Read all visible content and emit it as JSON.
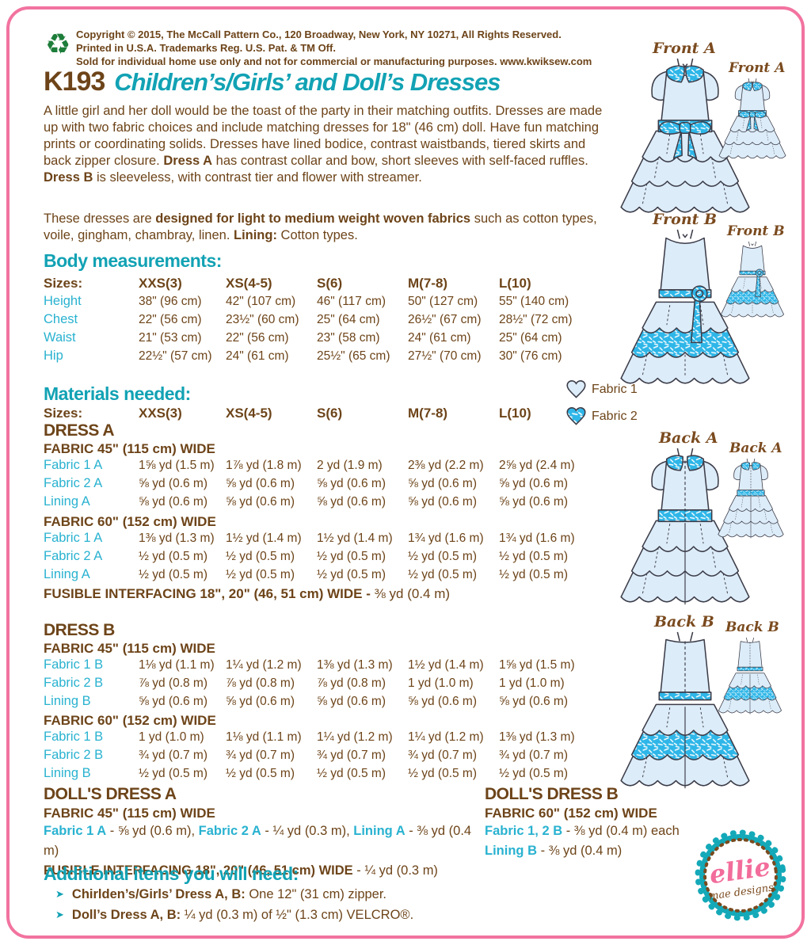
{
  "colors": {
    "brown": "#6d4419",
    "teal": "#12a2b4",
    "cyan": "#29b2d0",
    "pink": "#f2739f",
    "dress_light": "#dcecf8",
    "dress_bright": "#2eb6e8",
    "recycle_green": "#1d7d3a"
  },
  "icons": {
    "recycle": "♻",
    "bullet": "➤"
  },
  "header": {
    "copyright_lines": [
      "Copyright © 2015, The McCall Pattern Co., 120 Broadway, New York, NY 10271, All Rights Reserved.",
      "Printed in U.S.A. Trademarks Reg. U.S. Pat. & TM Off.",
      "Sold for individual home use only and not for commercial or manufacturing purposes. www.kwiksew.com"
    ],
    "code": "K193",
    "title": "Children’s/Girls’ and Doll’s Dresses"
  },
  "intro_segments": [
    {
      "t": "A little girl and her doll would be the toast of the party in their matching outfits. Dresses are made up with two fabric choices and include matching dresses for 18\" (46 cm) doll. Have fun matching prints or coordinating solids. Dresses have lined bodice, contrast waistbands, tiered skirts and back zipper closure. "
    },
    {
      "t": "Dress A",
      "b": true
    },
    {
      "t": " has contrast collar and bow, short sleeves with self-faced ruffles. "
    },
    {
      "t": "Dress B",
      "b": true
    },
    {
      "t": " is sleeveless, with contrast tier and flower with streamer."
    }
  ],
  "fabric_note_segments": [
    {
      "t": "These dresses are "
    },
    {
      "t": "designed for light to medium weight woven fabrics",
      "b": true
    },
    {
      "t": " such as cotton types, voile, gingham, chambray, linen. "
    },
    {
      "t": "Lining:",
      "b": true
    },
    {
      "t": " Cotton types."
    }
  ],
  "body_measurements": {
    "heading": "Body measurements:",
    "table": [
      {
        "label": "Sizes:",
        "header": true,
        "values": [
          "XXS(3)",
          "XS(4-5)",
          "S(6)",
          "M(7-8)",
          "L(10)"
        ]
      },
      {
        "label": "Height",
        "values": [
          "38\" (96 cm)",
          "42\" (107 cm)",
          "46\" (117 cm)",
          "50\" (127 cm)",
          "55\" (140 cm)"
        ]
      },
      {
        "label": "Chest",
        "values": [
          "22\" (56 cm)",
          "23½\" (60 cm)",
          "25\" (64 cm)",
          "26½\" (67 cm)",
          "28½\" (72 cm)"
        ]
      },
      {
        "label": "Waist",
        "values": [
          "21\" (53 cm)",
          "22\" (56 cm)",
          "23\" (58 cm)",
          "24\" (61 cm)",
          "25\" (64 cm)"
        ]
      },
      {
        "label": "Hip",
        "values": [
          "22½\" (57 cm)",
          "24\" (61 cm)",
          "25½\" (65 cm)",
          "27½\" (70 cm)",
          "30\" (76 cm)"
        ]
      }
    ]
  },
  "materials": {
    "heading": "Materials needed:",
    "sizes_table": [
      {
        "label": "Sizes:",
        "header": true,
        "values": [
          "XXS(3)",
          "XS(4-5)",
          "S(6)",
          "M(7-8)",
          "L(10)"
        ]
      }
    ],
    "dress_a": {
      "heading": "DRESS A",
      "fabric45_heading": "FABRIC 45\" (115 cm) WIDE",
      "fabric45_rows": [
        {
          "label": "Fabric 1 A",
          "values": [
            "1⅝ yd (1.5 m)",
            "1⅞ yd (1.8 m)",
            "2 yd (1.9 m)",
            "2⅜ yd (2.2 m)",
            "2⅝ yd (2.4 m)"
          ]
        },
        {
          "label": "Fabric 2 A",
          "values": [
            "⅝ yd (0.6 m)",
            "⅝ yd (0.6 m)",
            "⅝ yd (0.6 m)",
            "⅝ yd (0.6 m)",
            "⅝ yd (0.6 m)"
          ]
        },
        {
          "label": "Lining A",
          "values": [
            "⅝ yd (0.6 m)",
            "⅝ yd (0.6 m)",
            "⅝ yd (0.6 m)",
            "⅝ yd (0.6 m)",
            "⅝ yd (0.6 m)"
          ]
        }
      ],
      "fabric60_heading": "FABRIC 60\" (152 cm) WIDE",
      "fabric60_rows": [
        {
          "label": "Fabric 1 A",
          "values": [
            "1⅜ yd (1.3 m)",
            "1½ yd (1.4 m)",
            "1½ yd (1.4 m)",
            "1¾ yd (1.6 m)",
            "1¾ yd (1.6 m)"
          ]
        },
        {
          "label": "Fabric 2 A",
          "values": [
            "½ yd (0.5 m)",
            "½ yd (0.5 m)",
            "½ yd (0.5 m)",
            "½ yd (0.5 m)",
            "½ yd (0.5 m)"
          ]
        },
        {
          "label": "Lining A",
          "values": [
            "½ yd (0.5 m)",
            "½ yd (0.5 m)",
            "½ yd (0.5 m)",
            "½ yd (0.5 m)",
            "½ yd (0.5 m)"
          ]
        }
      ],
      "fusible_segments": [
        {
          "t": "FUSIBLE INTERFACING 18\", 20\" (46, 51 cm) WIDE - ",
          "b": true
        },
        {
          "t": "⅜ yd (0.4 m)"
        }
      ]
    },
    "dress_b": {
      "heading": "DRESS B",
      "fabric45_heading": "FABRIC 45\" (115 cm) WIDE",
      "fabric45_rows": [
        {
          "label": "Fabric 1 B",
          "values": [
            "1⅛ yd (1.1 m)",
            "1¼ yd (1.2 m)",
            "1⅜ yd (1.3 m)",
            "1½ yd (1.4 m)",
            "1⅝ yd (1.5 m)"
          ]
        },
        {
          "label": "Fabric 2 B",
          "values": [
            "⅞ yd (0.8 m)",
            "⅞ yd (0.8 m)",
            "⅞ yd (0.8 m)",
            "1 yd (1.0 m)",
            "1 yd (1.0 m)"
          ]
        },
        {
          "label": "Lining B",
          "values": [
            "⅝ yd (0.6 m)",
            "⅝ yd (0.6 m)",
            "⅝ yd (0.6 m)",
            "⅝ yd (0.6 m)",
            "⅝ yd (0.6 m)"
          ]
        }
      ],
      "fabric60_heading": "FABRIC 60\" (152 cm) WIDE",
      "fabric60_rows": [
        {
          "label": "Fabric 1 B",
          "values": [
            "1 yd (1.0 m)",
            "1⅛ yd (1.1 m)",
            "1¼ yd (1.2 m)",
            "1¼ yd (1.2 m)",
            "1⅜ yd (1.3 m)"
          ]
        },
        {
          "label": "Fabric 2 B",
          "values": [
            "¾ yd (0.7 m)",
            "¾ yd (0.7 m)",
            "¾ yd (0.7 m)",
            "¾ yd (0.7 m)",
            "¾ yd (0.7 m)"
          ]
        },
        {
          "label": "Lining B",
          "values": [
            "½ yd (0.5 m)",
            "½ yd (0.5 m)",
            "½ yd (0.5 m)",
            "½ yd (0.5 m)",
            "½ yd (0.5 m)"
          ]
        }
      ]
    }
  },
  "dolls": {
    "a": {
      "heading": "DOLL'S DRESS A",
      "fabric_heading": "FABRIC 45\" (115 cm) WIDE",
      "line_segments": [
        {
          "t": "Fabric 1 A",
          "c": true
        },
        {
          "t": " - ⅝ yd (0.6 m), "
        },
        {
          "t": "Fabric 2 A",
          "c": true
        },
        {
          "t": " - ¼ yd (0.3 m), "
        },
        {
          "t": "Lining A",
          "c": true
        },
        {
          "t": " - ⅜ yd (0.4 m)"
        }
      ],
      "fusible_segments": [
        {
          "t": "FUSIBLE INTERFACING 18\", 20\" (46, 51 cm) WIDE",
          "b": true
        },
        {
          "t": " - ¼ yd (0.3 m)"
        }
      ]
    },
    "b": {
      "heading": "DOLL'S DRESS B",
      "fabric_heading": "FABRIC 60\" (152 cm) WIDE",
      "line1_segments": [
        {
          "t": "Fabric 1, 2 B",
          "c": true
        },
        {
          "t": " - ⅜ yd (0.4 m) each"
        }
      ],
      "line2_segments": [
        {
          "t": "Lining B",
          "c": true
        },
        {
          "t": " - ⅜ yd (0.4 m)"
        }
      ]
    }
  },
  "additional": {
    "heading": "Additional items you will need:",
    "item1_segments": [
      {
        "t": "Chirlden’s/Girls’ Dress A, B:",
        "b": true
      },
      {
        "t": " One 12\" (31 cm) zipper."
      }
    ],
    "item2_segments": [
      {
        "t": "Doll’s Dress A, B:",
        "b": true
      },
      {
        "t": " ¼ yd (0.3 m) of ½\" (1.3 cm) VELCRO®."
      }
    ]
  },
  "illustrations": {
    "front_a_label": "Front A",
    "front_a_doll_label": "Front A",
    "front_b_label": "Front B",
    "front_b_doll_label": "Front B",
    "back_a_label": "Back A",
    "back_a_doll_label": "Back A",
    "back_b_label": "Back B",
    "back_b_doll_label": "Back B",
    "legend_fabric1": "Fabric 1",
    "legend_fabric2": "Fabric 2"
  },
  "logo": {
    "script": "ellie",
    "sub": "mae designs."
  }
}
